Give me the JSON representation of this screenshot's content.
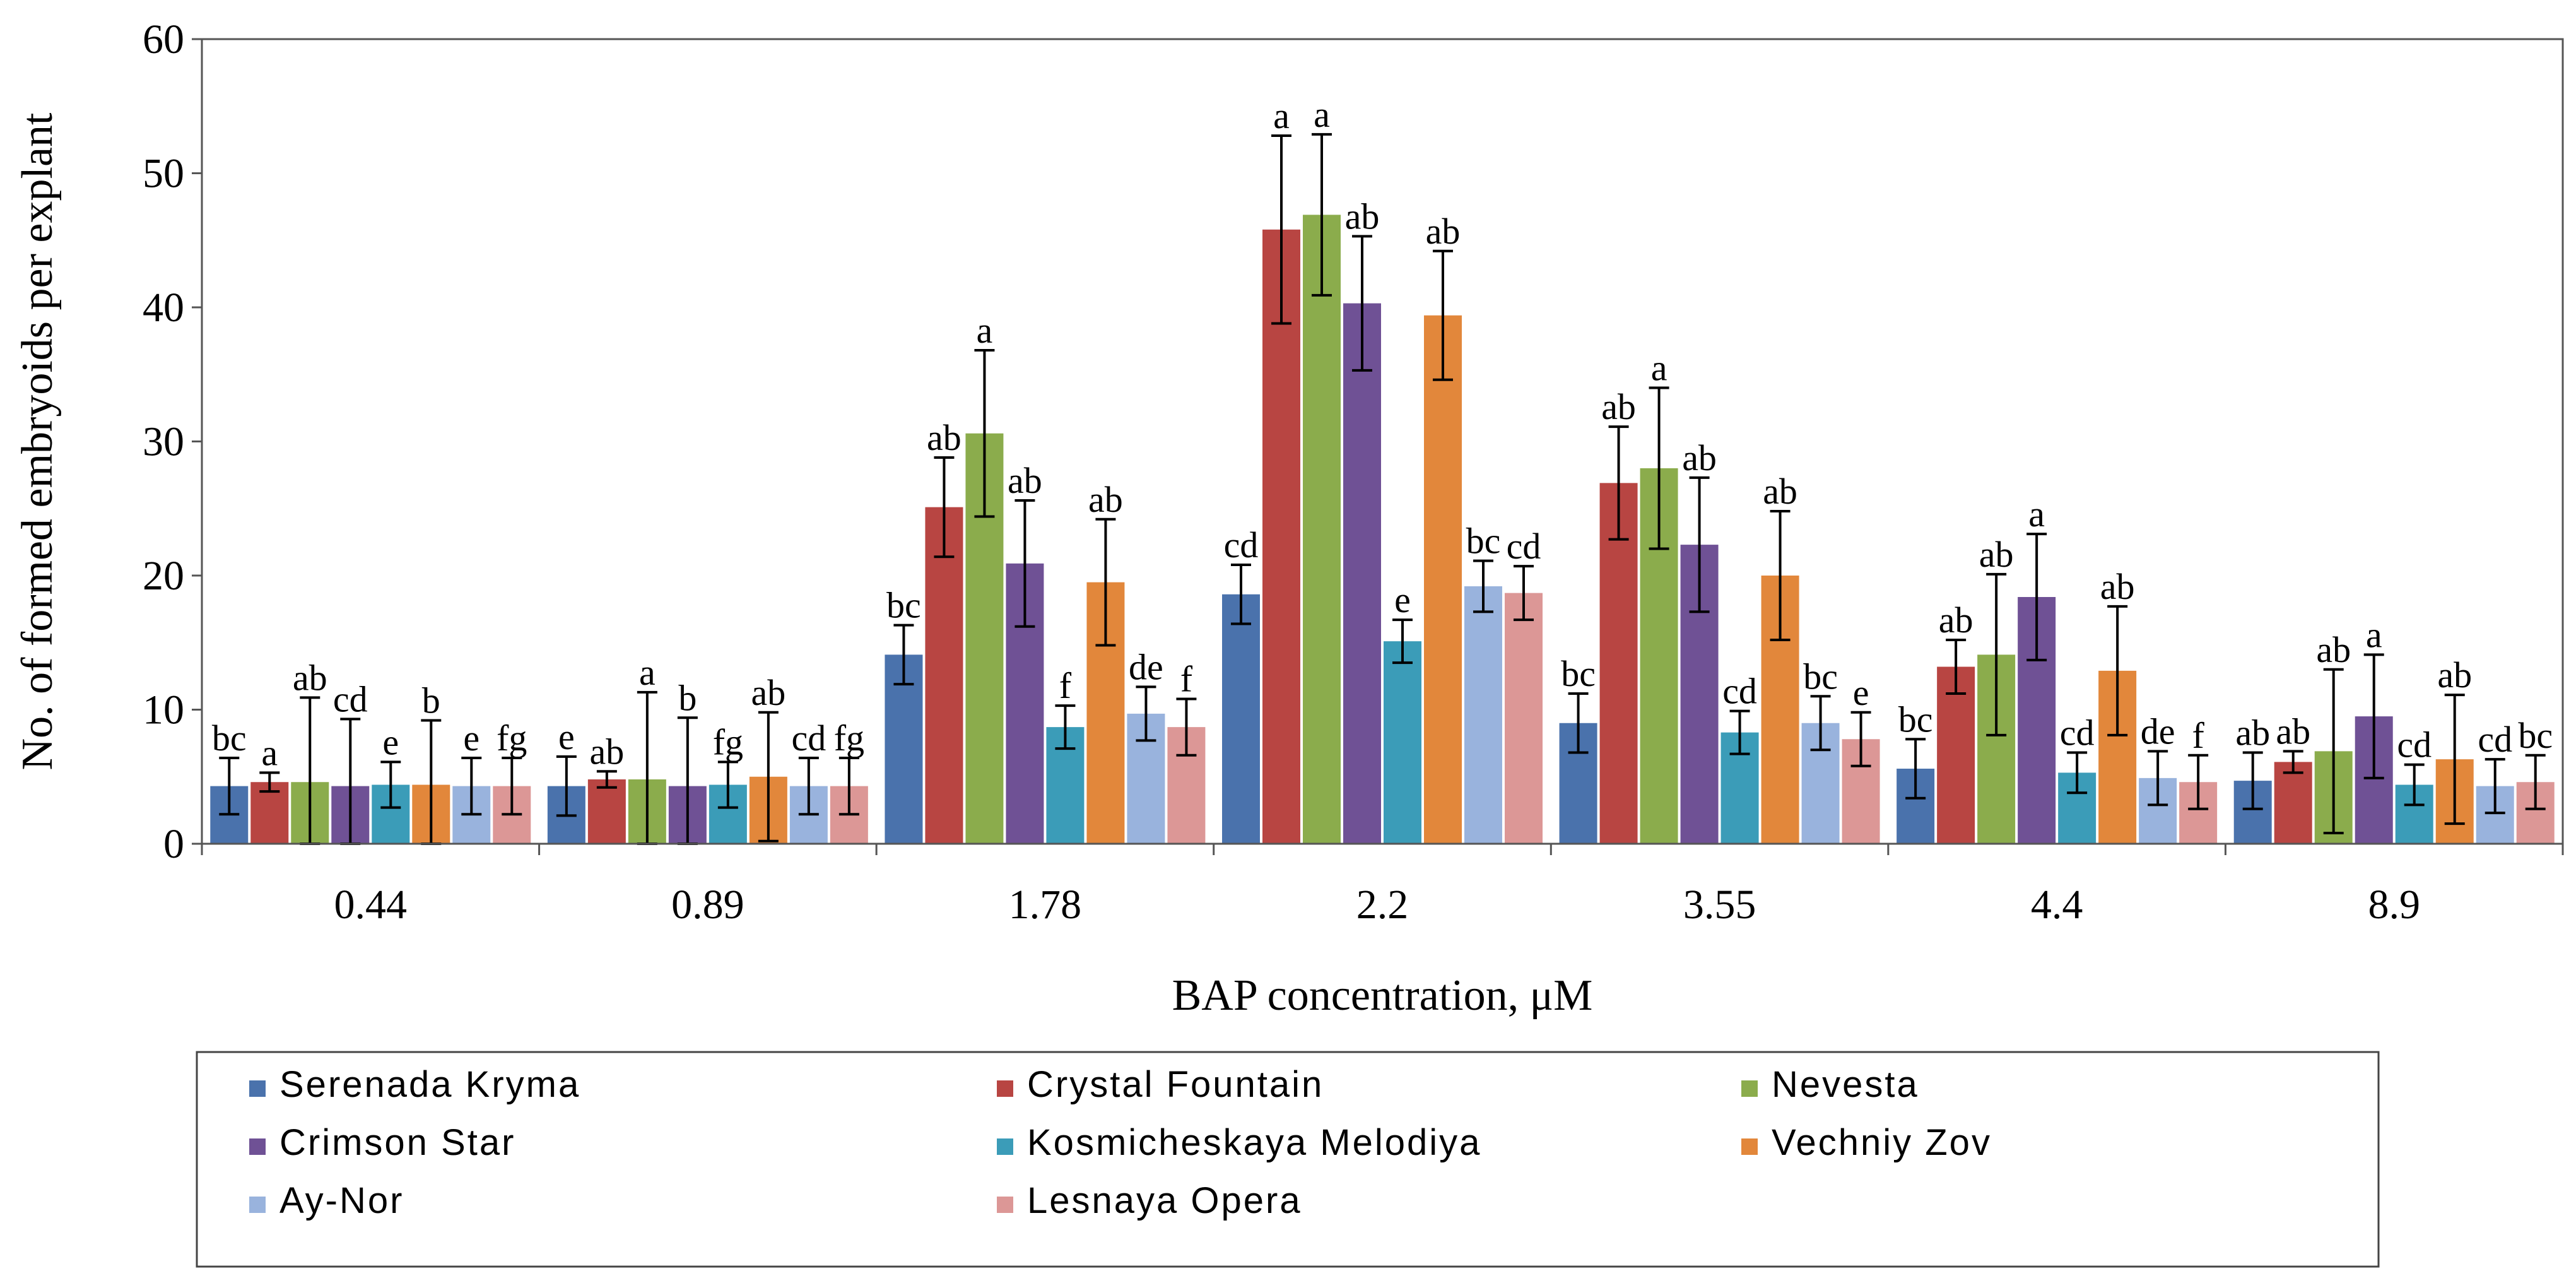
{
  "chart_data": {
    "type": "bar",
    "xlabel": "BAP concentration, μM",
    "ylabel": "No. of  formed embryoids per explant",
    "ylim": [
      0,
      60
    ],
    "yticks": [
      0,
      10,
      20,
      30,
      40,
      50,
      60
    ],
    "grid": false,
    "legend_position": "bottom",
    "categories": [
      "0.44",
      "0.89",
      "1.78",
      "2.2",
      "3.55",
      "4.4",
      "8.9"
    ],
    "series": [
      {
        "name": "Serenada Kryma",
        "color": "#4a72ac",
        "values": [
          4.3,
          4.3,
          14.1,
          18.6,
          9.0,
          5.6,
          4.7
        ],
        "errors": [
          2.1,
          2.2,
          2.2,
          2.2,
          2.2,
          2.2,
          2.1
        ],
        "labels": [
          "bc",
          "e",
          "bc",
          "cd",
          "bc",
          "bc",
          "ab"
        ]
      },
      {
        "name": "Crystal Fountain",
        "color": "#b84542",
        "values": [
          4.6,
          4.8,
          25.1,
          45.8,
          26.9,
          13.2,
          6.1
        ],
        "errors": [
          0.7,
          0.6,
          3.7,
          7.0,
          4.2,
          2.0,
          0.8
        ],
        "labels": [
          "a",
          "ab",
          "ab",
          "a",
          "ab",
          "ab",
          "ab"
        ]
      },
      {
        "name": "Nevesta",
        "color": "#8bac4c",
        "values": [
          4.6,
          4.8,
          30.6,
          46.9,
          28.0,
          14.1,
          6.9
        ],
        "errors": [
          6.3,
          6.5,
          6.2,
          6.0,
          6.0,
          6.0,
          6.1
        ],
        "labels": [
          "ab",
          "a",
          "a",
          "a",
          "a",
          "ab",
          "ab"
        ]
      },
      {
        "name": "Crimson Star",
        "color": "#6f5195",
        "values": [
          4.3,
          4.3,
          20.9,
          40.3,
          22.3,
          18.4,
          9.5
        ],
        "errors": [
          5.0,
          5.1,
          4.7,
          5.0,
          5.0,
          4.7,
          4.6
        ],
        "labels": [
          "cd",
          "b",
          "ab",
          "ab",
          "ab",
          "a",
          "a"
        ]
      },
      {
        "name": "Kosmicheskaya Melodiya",
        "color": "#3b9cb8",
        "values": [
          4.4,
          4.4,
          8.7,
          15.1,
          8.3,
          5.3,
          4.4
        ],
        "errors": [
          1.7,
          1.7,
          1.6,
          1.6,
          1.6,
          1.5,
          1.5
        ],
        "labels": [
          "e",
          "fg",
          "f",
          "e",
          "cd",
          "cd",
          "cd"
        ]
      },
      {
        "name": "Vechniy Zov",
        "color": "#e2873b",
        "values": [
          4.4,
          5.0,
          19.5,
          39.4,
          20.0,
          12.9,
          6.3
        ],
        "errors": [
          4.8,
          4.8,
          4.7,
          4.8,
          4.8,
          4.8,
          4.8
        ],
        "labels": [
          "b",
          "ab",
          "ab",
          "ab",
          "ab",
          "ab",
          "ab"
        ]
      },
      {
        "name": "Ay-Nor",
        "color": "#99b3dd",
        "values": [
          4.3,
          4.3,
          9.7,
          19.2,
          9.0,
          4.9,
          4.3
        ],
        "errors": [
          2.1,
          2.1,
          2.0,
          1.9,
          2.0,
          2.0,
          2.0
        ],
        "labels": [
          "e",
          "cd",
          "de",
          "bc",
          "bc",
          "de",
          "cd"
        ]
      },
      {
        "name": "Lesnaya Opera",
        "color": "#dc9796",
        "values": [
          4.3,
          4.3,
          8.7,
          18.7,
          7.8,
          4.6,
          4.6
        ],
        "errors": [
          2.1,
          2.1,
          2.1,
          2.0,
          2.0,
          2.0,
          2.0
        ],
        "labels": [
          "fg",
          "fg",
          "f",
          "cd",
          "e",
          "f",
          "bc"
        ]
      }
    ]
  }
}
